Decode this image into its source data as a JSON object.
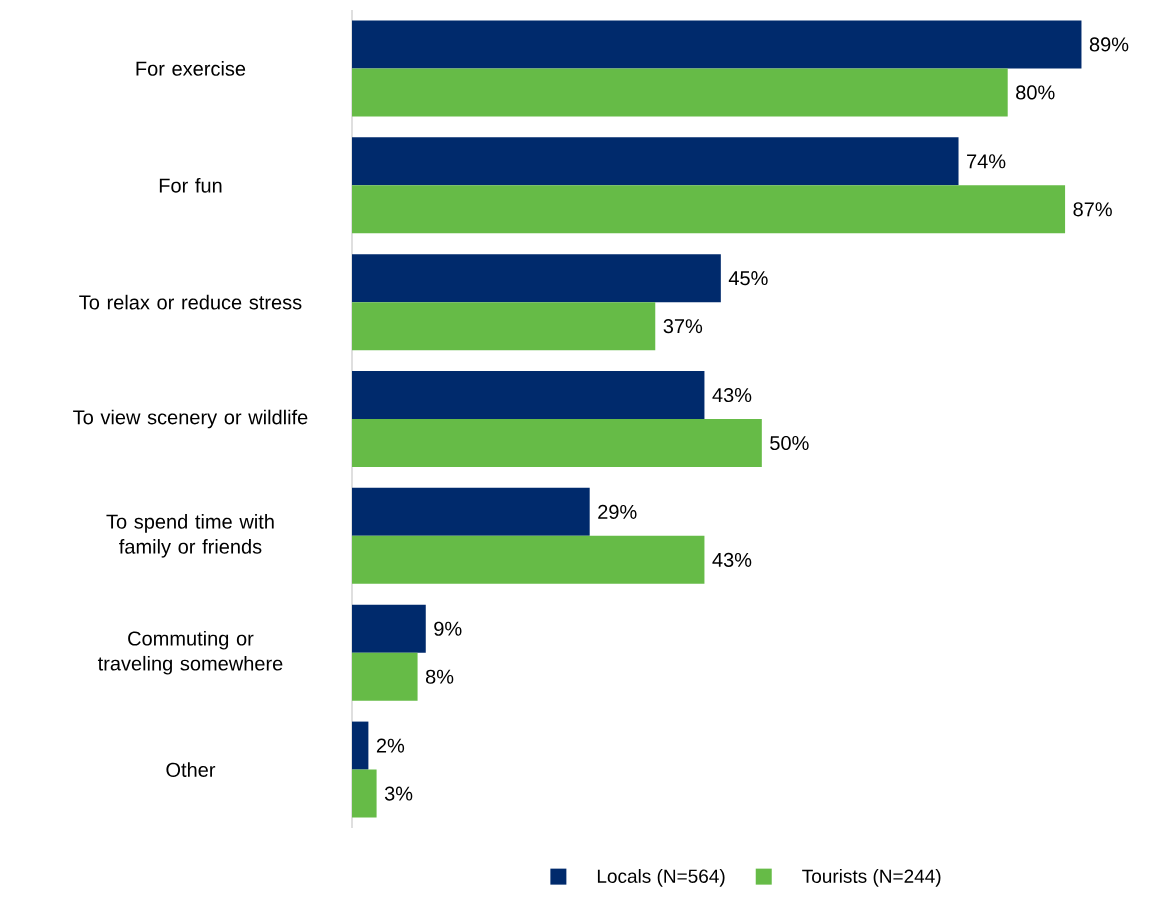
{
  "chart_data": {
    "type": "bar",
    "orientation": "horizontal",
    "categories": [
      "For exercise",
      "For fun",
      "To relax or reduce stress",
      "To view scenery or wildlife",
      "To spend time with family or friends",
      "Commuting or traveling somewhere",
      "Other"
    ],
    "series": [
      {
        "name": "Locals (N=564)",
        "color": "#002a6c",
        "values": [
          89,
          74,
          45,
          43,
          29,
          9,
          2
        ],
        "value_labels": [
          "89%",
          "74%",
          "45%",
          "43%",
          "29%",
          "9%",
          "2%"
        ]
      },
      {
        "name": "Tourists (N=244)",
        "color": "#66bb47",
        "values": [
          80,
          87,
          37,
          50,
          43,
          8,
          3
        ],
        "value_labels": [
          "80%",
          "87%",
          "37%",
          "50%",
          "43%",
          "8%",
          "3%"
        ]
      }
    ],
    "legend": "bottom"
  }
}
